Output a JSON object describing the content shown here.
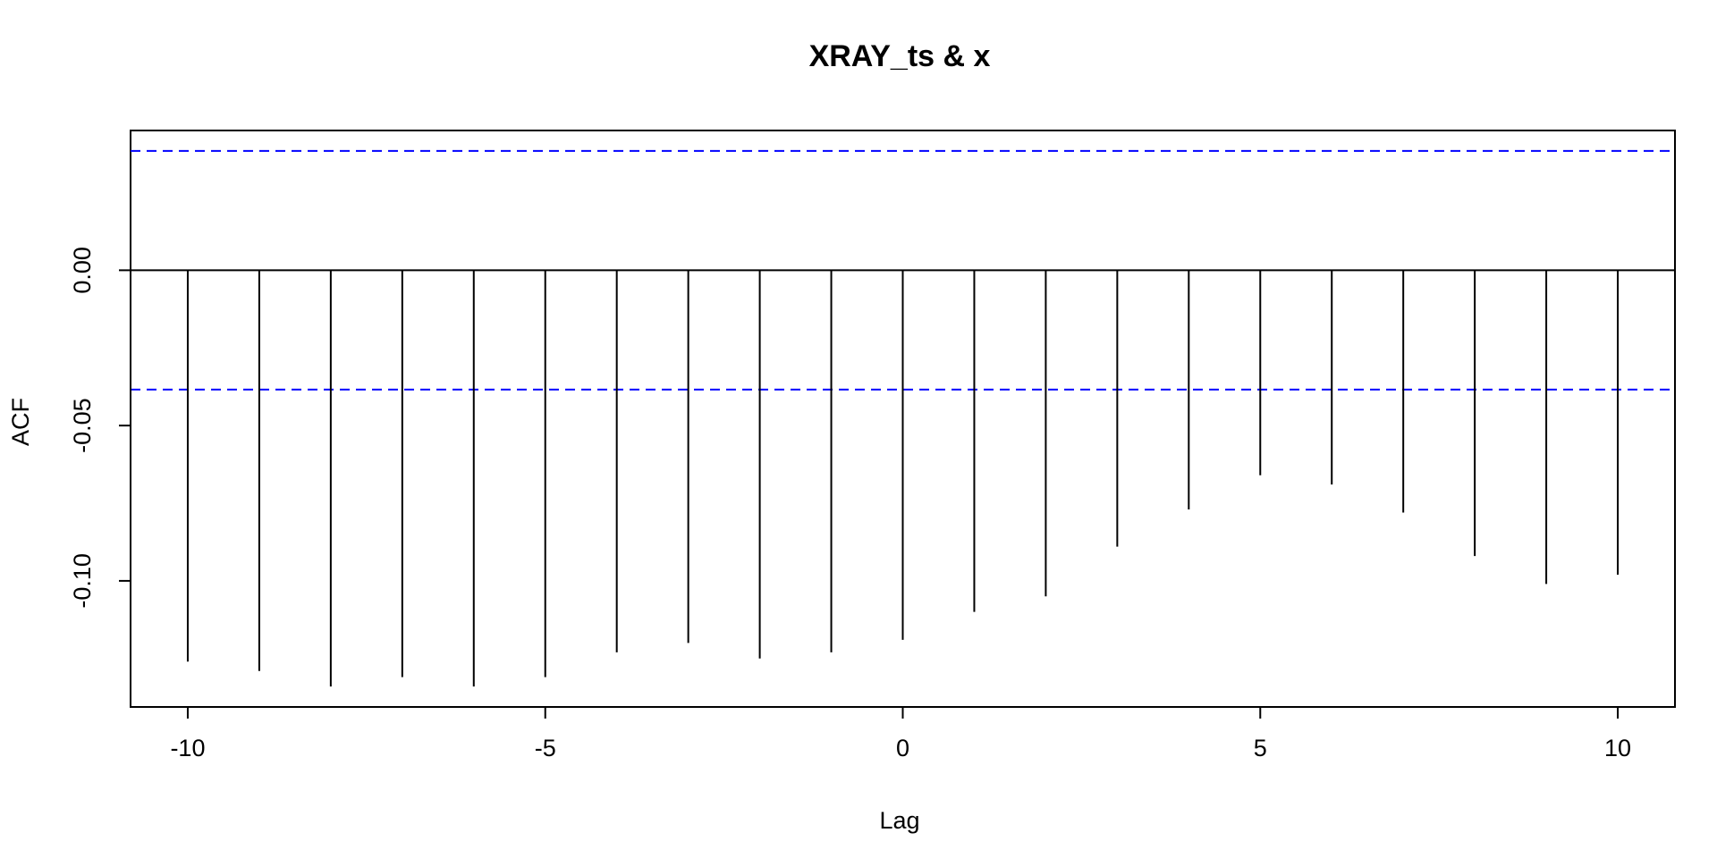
{
  "chart_data": {
    "type": "bar",
    "title": "XRAY_ts & x",
    "xlabel": "Lag",
    "ylabel": "ACF",
    "x": [
      -10,
      -9,
      -8,
      -7,
      -6,
      -5,
      -4,
      -3,
      -2,
      -1,
      0,
      1,
      2,
      3,
      4,
      5,
      6,
      7,
      8,
      9,
      10
    ],
    "values": [
      -0.126,
      -0.129,
      -0.134,
      -0.131,
      -0.134,
      -0.131,
      -0.123,
      -0.12,
      -0.125,
      -0.123,
      -0.119,
      -0.11,
      -0.105,
      -0.089,
      -0.077,
      -0.066,
      -0.069,
      -0.078,
      -0.092,
      -0.101,
      -0.098
    ],
    "confidence_bounds": [
      0.0384,
      -0.0384
    ],
    "xlim": [
      -10.8,
      10.8
    ],
    "ylim": [
      -0.1406,
      0.045
    ],
    "xticks": [
      -10,
      -5,
      0,
      5,
      10
    ],
    "xtick_labels": [
      "-10",
      "-5",
      "0",
      "5",
      "10"
    ],
    "yticks": [
      0.0,
      -0.05,
      -0.1
    ],
    "ytick_labels": [
      "0.00",
      "-0.05",
      "-0.10"
    ],
    "grid": false,
    "colors": {
      "bars": "#000000",
      "bounds": "#0000ff",
      "zero_line": "#000000"
    }
  }
}
